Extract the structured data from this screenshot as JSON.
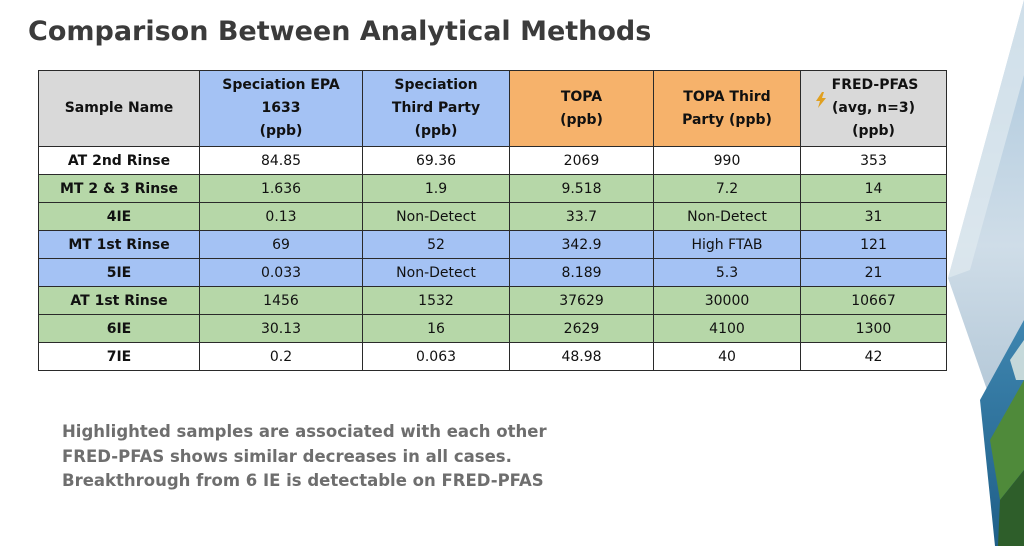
{
  "title": "Comparison Between Analytical Methods",
  "colors": {
    "header_gray": "#d9d9d9",
    "header_blue": "#a4c2f4",
    "header_orange": "#f6b26b",
    "row_green": "#b6d7a8",
    "row_blue": "#a4c2f4",
    "row_white": "#ffffff"
  },
  "table": {
    "headers": [
      {
        "line1": "Sample Name",
        "line2": "",
        "line3": "",
        "color": "#d9d9d9"
      },
      {
        "line1": "Speciation EPA",
        "line2": "1633",
        "line3": "(ppb)",
        "color": "#a4c2f4"
      },
      {
        "line1": "Speciation",
        "line2": "Third Party",
        "line3": "(ppb)",
        "color": "#a4c2f4"
      },
      {
        "line1": "TOPA",
        "line2": "(ppb)",
        "line3": "",
        "color": "#f6b26b"
      },
      {
        "line1": "TOPA Third",
        "line2": "Party (ppb)",
        "line3": "",
        "color": "#f6b26b"
      },
      {
        "line1": "FRED-PFAS",
        "line2": "(avg, n=3)",
        "line3": "(ppb)",
        "color": "#d9d9d9",
        "icon": "lightning-bolt-icon"
      }
    ],
    "rows": [
      {
        "name": "AT 2nd Rinse",
        "values": [
          "84.85",
          "69.36",
          "2069",
          "990",
          "353"
        ],
        "color": "#ffffff"
      },
      {
        "name": "MT 2 & 3 Rinse",
        "values": [
          "1.636",
          "1.9",
          "9.518",
          "7.2",
          "14"
        ],
        "color": "#b6d7a8"
      },
      {
        "name": "4IE",
        "values": [
          "0.13",
          "Non-Detect",
          "33.7",
          "Non-Detect",
          "31"
        ],
        "color": "#b6d7a8"
      },
      {
        "name": "MT 1st Rinse",
        "values": [
          "69",
          "52",
          "342.9",
          "High FTAB",
          "121"
        ],
        "color": "#a4c2f4"
      },
      {
        "name": "5IE",
        "values": [
          "0.033",
          "Non-Detect",
          "8.189",
          "5.3",
          "21"
        ],
        "color": "#a4c2f4"
      },
      {
        "name": "AT 1st Rinse",
        "values": [
          "1456",
          "1532",
          "37629",
          "30000",
          "10667"
        ],
        "color": "#b6d7a8"
      },
      {
        "name": "6IE",
        "values": [
          "30.13",
          "16",
          "2629",
          "4100",
          "1300"
        ],
        "color": "#b6d7a8"
      },
      {
        "name": "7IE",
        "values": [
          "0.2",
          "0.063",
          "48.98",
          "40",
          "42"
        ],
        "color": "#ffffff"
      }
    ]
  },
  "notes": [
    "Highlighted samples are associated with each other",
    "FRED-PFAS shows similar decreases in all cases.",
    "Breakthrough from 6 IE is detectable on FRED-PFAS"
  ]
}
